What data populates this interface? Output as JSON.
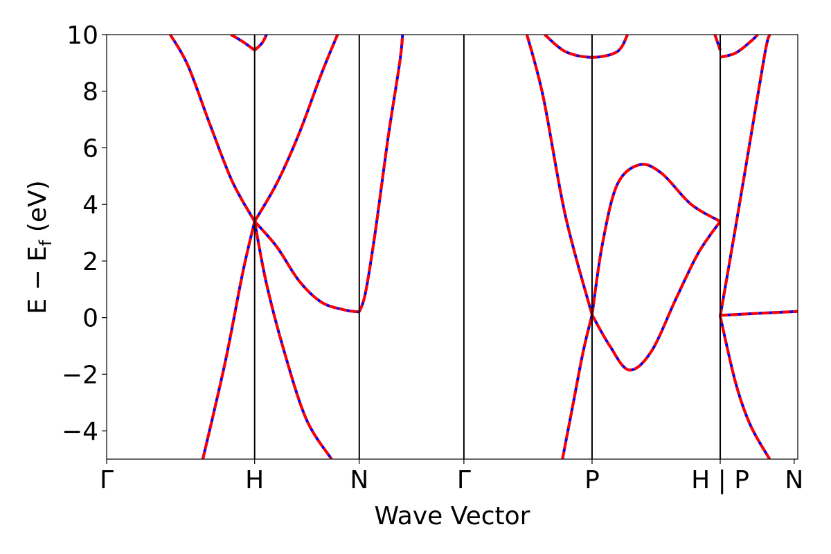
{
  "chart_data": {
    "type": "line",
    "xlabel": "Wave Vector",
    "ylabel_main": "E − E",
    "ylabel_sub": "f",
    "ylabel_tail": " (eV)",
    "ylim": [
      -5,
      10
    ],
    "yticks": [
      10,
      8,
      6,
      4,
      2,
      0,
      -2,
      -4
    ],
    "ytick_labels": [
      "10",
      "8",
      "6",
      "4",
      "2",
      "0",
      "−2",
      "−4"
    ],
    "xlim": [
      0,
      4.67
    ],
    "kpoints": [
      {
        "label": "Γ",
        "x": 0
      },
      {
        "label": "H",
        "x": 1.0
      },
      {
        "label": "N",
        "x": 1.707
      },
      {
        "label": "Γ",
        "x": 2.414
      },
      {
        "label": "P",
        "x": 3.28
      },
      {
        "label": "H | P",
        "x": 4.146
      },
      {
        "label": "N",
        "x": 4.646
      }
    ],
    "band_style": {
      "under_color": "#0000ff",
      "over_color": "#ff0000"
    },
    "series": [
      {
        "values": [
          [
            0.43,
            10.0
          ],
          [
            0.55,
            8.9
          ],
          [
            0.7,
            6.8
          ],
          [
            0.85,
            4.8
          ],
          [
            1.0,
            3.4
          ]
        ]
      },
      {
        "values": [
          [
            1.0,
            3.4
          ],
          [
            1.15,
            4.75
          ],
          [
            1.3,
            6.5
          ],
          [
            1.45,
            8.6
          ],
          [
            1.56,
            10.0
          ]
        ]
      },
      {
        "values": [
          [
            0.65,
            -5.0
          ],
          [
            0.8,
            -1.6
          ],
          [
            0.92,
            1.6
          ],
          [
            1.0,
            3.4
          ]
        ]
      },
      {
        "values": [
          [
            1.0,
            3.4
          ],
          [
            1.08,
            1.2
          ],
          [
            1.2,
            -1.2
          ],
          [
            1.35,
            -3.6
          ],
          [
            1.52,
            -5.0
          ]
        ]
      },
      {
        "values": [
          [
            1.0,
            3.4
          ],
          [
            1.15,
            2.5
          ],
          [
            1.3,
            1.3
          ],
          [
            1.45,
            0.55
          ],
          [
            1.6,
            0.28
          ],
          [
            1.707,
            0.2
          ]
        ]
      },
      {
        "values": [
          [
            1.707,
            0.2
          ],
          [
            1.75,
            0.9
          ],
          [
            1.82,
            3.2
          ],
          [
            1.9,
            6.3
          ],
          [
            1.98,
            9.0
          ],
          [
            2.0,
            10.0
          ]
        ]
      },
      {
        "values": [
          [
            0.84,
            10.0
          ],
          [
            0.92,
            9.75
          ],
          [
            1.0,
            9.45
          ]
        ]
      },
      {
        "values": [
          [
            1.0,
            9.45
          ],
          [
            1.05,
            9.7
          ],
          [
            1.08,
            10.0
          ]
        ]
      },
      {
        "values": [
          [
            2.84,
            10.0
          ],
          [
            2.95,
            7.8
          ],
          [
            3.1,
            3.6
          ],
          [
            3.28,
            0.1
          ]
        ]
      },
      {
        "values": [
          [
            3.28,
            0.1
          ],
          [
            3.4,
            -1.0
          ],
          [
            3.53,
            -1.85
          ],
          [
            3.68,
            -1.2
          ],
          [
            3.85,
            0.7
          ],
          [
            4.0,
            2.3
          ],
          [
            4.146,
            3.4
          ]
        ]
      },
      {
        "values": [
          [
            3.28,
            0.1
          ],
          [
            3.35,
            2.6
          ],
          [
            3.45,
            4.7
          ],
          [
            3.6,
            5.4
          ],
          [
            3.75,
            5.1
          ],
          [
            3.95,
            4.0
          ],
          [
            4.146,
            3.4
          ]
        ]
      },
      {
        "values": [
          [
            3.08,
            -5.0
          ],
          [
            3.15,
            -3.1
          ],
          [
            3.22,
            -1.2
          ],
          [
            3.28,
            0.1
          ]
        ]
      },
      {
        "values": [
          [
            2.96,
            10.0
          ],
          [
            3.1,
            9.4
          ],
          [
            3.28,
            9.2
          ],
          [
            3.45,
            9.4
          ],
          [
            3.52,
            10.0
          ]
        ]
      },
      {
        "values": [
          [
            4.146,
            0.05
          ],
          [
            4.25,
            3.2
          ],
          [
            4.35,
            6.3
          ],
          [
            4.45,
            9.4
          ],
          [
            4.48,
            10.0
          ]
        ]
      },
      {
        "values": [
          [
            4.146,
            0.05
          ],
          [
            4.25,
            -2.3
          ],
          [
            4.35,
            -3.8
          ],
          [
            4.48,
            -5.0
          ]
        ]
      },
      {
        "values": [
          [
            4.146,
            0.08
          ],
          [
            4.4,
            0.15
          ],
          [
            4.67,
            0.22
          ]
        ]
      },
      {
        "values": [
          [
            4.146,
            9.2
          ],
          [
            4.25,
            9.35
          ],
          [
            4.35,
            9.75
          ],
          [
            4.4,
            10.0
          ]
        ]
      },
      {
        "values": [
          [
            4.11,
            10.0
          ],
          [
            4.146,
            9.45
          ]
        ]
      }
    ]
  }
}
